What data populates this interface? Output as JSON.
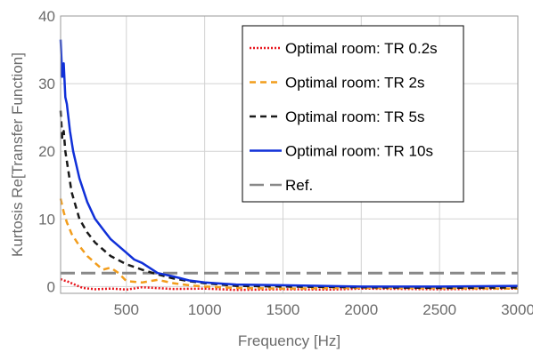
{
  "chart_data": {
    "type": "line",
    "xlabel": "Frequency [Hz]",
    "ylabel": "Kurtosis Re[Transfer Function]",
    "xlim": [
      80,
      3000
    ],
    "ylim": [
      -1,
      40
    ],
    "xticks": [
      500,
      1000,
      1500,
      2000,
      2500,
      3000
    ],
    "yticks": [
      0,
      10,
      20,
      30,
      40
    ],
    "grid": true,
    "legend_position": "top-right",
    "series": [
      {
        "name": "Optimal room: TR 0.2s",
        "color": "#e8141b",
        "style": "dotted",
        "x": [
          80,
          100,
          120,
          150,
          180,
          220,
          300,
          400,
          500,
          600,
          800,
          1000,
          1200,
          1500,
          1800,
          2000,
          2500,
          3000
        ],
        "y": [
          1.1,
          0.9,
          0.8,
          0.5,
          0.2,
          -0.2,
          -0.4,
          -0.3,
          -0.45,
          -0.1,
          -0.35,
          -0.3,
          -0.5,
          -0.4,
          -0.45,
          -0.3,
          -0.4,
          -0.3
        ]
      },
      {
        "name": "Optimal room:  TR 2s",
        "color": "#f29d1c",
        "style": "dashed",
        "x": [
          80,
          100,
          120,
          150,
          200,
          250,
          300,
          350,
          400,
          450,
          500,
          600,
          700,
          800,
          900,
          1000,
          1200,
          1500,
          2000,
          2500,
          3000
        ],
        "y": [
          13,
          11,
          9.5,
          7.8,
          6,
          4.5,
          3.5,
          2.5,
          2.8,
          2,
          0.8,
          0.6,
          1,
          0.5,
          0.2,
          0,
          -0.2,
          -0.3,
          -0.2,
          -0.25,
          -0.3
        ]
      },
      {
        "name": "Optimal room:  TR 5s",
        "color": "#1a1a1a",
        "style": "dashed",
        "x": [
          80,
          90,
          100,
          110,
          130,
          150,
          200,
          250,
          300,
          350,
          400,
          500,
          600,
          700,
          800,
          900,
          1000,
          1200,
          1500,
          2000,
          2500,
          3000
        ],
        "y": [
          26,
          22,
          23,
          20,
          17,
          14,
          10,
          8,
          6.5,
          5.5,
          4.5,
          3.3,
          2.5,
          1.8,
          1.2,
          0.8,
          0.5,
          0.1,
          0,
          -0.1,
          -0.2,
          -0.15
        ]
      },
      {
        "name": "Optimal room:  TR 10s",
        "color": "#1030d8",
        "style": "solid",
        "x": [
          80,
          90,
          100,
          110,
          120,
          140,
          160,
          200,
          250,
          300,
          350,
          400,
          450,
          500,
          550,
          600,
          700,
          800,
          900,
          1000,
          1200,
          1500,
          2000,
          2500,
          3000
        ],
        "y": [
          36.5,
          31,
          33,
          28,
          27,
          23,
          20,
          16,
          12.5,
          10,
          8.5,
          7,
          6,
          5,
          4,
          3.5,
          2,
          1.5,
          0.9,
          0.6,
          0.3,
          0.2,
          0,
          0,
          0.1
        ]
      },
      {
        "name": "Ref.",
        "color": "#888888",
        "style": "longdash",
        "x": [
          80,
          3000
        ],
        "y": [
          2,
          2
        ]
      }
    ]
  }
}
